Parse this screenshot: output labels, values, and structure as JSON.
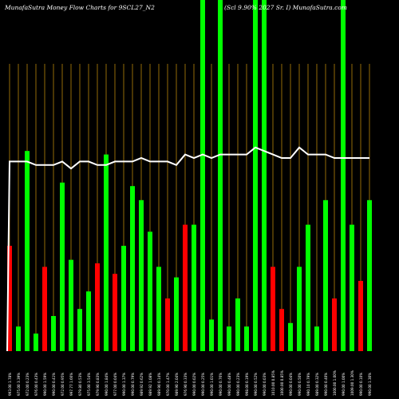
{
  "header": {
    "left_title": "MunafaSutra  Money Flow  Charts for 9SCL27_N2",
    "right_title": "(Scl 9.90% 2027 Sr. I) MunafaSutra.com"
  },
  "chart_data": {
    "type": "bar",
    "title": "MunafaSutra  Money Flow  Charts for 9SCL27_N2",
    "subtitle": "(Scl 9.90% 2027 Sr. I) MunafaSutra.com",
    "colors": {
      "up": "#00ff00",
      "down": "#ff0000",
      "line": "#ffffff",
      "grid": "#b8860b",
      "background": "#000000"
    },
    "grid": true,
    "categories": [
      "1",
      "2",
      "3",
      "4",
      "5",
      "6",
      "7",
      "8",
      "9",
      "10",
      "11",
      "12",
      "13",
      "14",
      "15",
      "16",
      "17",
      "18",
      "19",
      "20",
      "21",
      "22",
      "23",
      "24",
      "25",
      "26",
      "27",
      "28",
      "29",
      "30",
      "31",
      "32",
      "33",
      "34",
      "35",
      "36",
      "37",
      "38",
      "39",
      "40",
      "41",
      "42"
    ],
    "tick_labels": [
      "993.00 1.78%",
      "975.00 3.39%",
      "972.00 0.23%",
      "976.00 0.43%",
      "990.00 1.59%",
      "990.00 0.41%",
      "972.00 0.95%",
      "997.77 1.66%",
      "979.80 0.53%",
      "975.00 3.54%",
      "979.90 0.83%",
      "990.00 1.84%",
      "977.00 0.04%",
      "990.00 1.37%",
      "990.00 0.79%",
      "989.92 0.62%",
      "989.92 1.08%",
      "989.90 0.14%",
      "970.00 1.47%",
      "989.90 2.04%",
      "976.90 0.33%",
      "990.00 0.02%",
      "990.00 0.25%",
      "990.00 1.01%",
      "990.00 0.76%",
      "990.00 0.48%",
      "990.00 0.23%",
      "998.00 0.19%",
      "990.00 0.52%",
      "990.00 0.03%",
      "1010.00 0.85%",
      "1000.00 0.85%",
      "990.00 0.04%",
      "990.00 0.50%",
      "990.10 0.79%",
      "989.00 0.32%",
      "990.00 0.40%",
      "1000.00 1.00%",
      "990.00 1.00%",
      "1009.00 1.30%",
      "990.00 0.10%",
      "990.00 1.30%"
    ],
    "values": [
      0.3,
      0.07,
      0.57,
      0.05,
      0.24,
      0.1,
      0.48,
      0.26,
      0.12,
      0.17,
      0.25,
      0.56,
      0.22,
      0.3,
      0.47,
      0.43,
      0.34,
      0.24,
      0.15,
      0.21,
      0.36,
      0.36,
      1.0,
      0.09,
      1.0,
      0.07,
      0.15,
      0.07,
      1.0,
      1.0,
      0.24,
      0.12,
      0.08,
      0.24,
      0.36,
      0.07,
      0.43,
      0.15,
      1.0,
      0.36,
      0.2,
      0.43
    ],
    "directions": [
      "down",
      "up",
      "up",
      "up",
      "down",
      "up",
      "up",
      "up",
      "up",
      "up",
      "down",
      "up",
      "down",
      "up",
      "up",
      "up",
      "up",
      "up",
      "down",
      "up",
      "down",
      "up",
      "up",
      "up",
      "up",
      "up",
      "up",
      "up",
      "up",
      "up",
      "down",
      "down",
      "up",
      "up",
      "up",
      "up",
      "up",
      "down",
      "up",
      "up",
      "down",
      "up"
    ],
    "line": [
      0.54,
      0.54,
      0.54,
      0.53,
      0.53,
      0.53,
      0.54,
      0.52,
      0.54,
      0.54,
      0.53,
      0.53,
      0.54,
      0.54,
      0.54,
      0.55,
      0.54,
      0.54,
      0.54,
      0.53,
      0.56,
      0.55,
      0.56,
      0.55,
      0.56,
      0.56,
      0.56,
      0.56,
      0.58,
      0.57,
      0.56,
      0.55,
      0.55,
      0.58,
      0.56,
      0.56,
      0.56,
      0.55,
      0.55,
      0.55,
      0.55,
      0.55
    ],
    "line_start": 0.0,
    "ylim": [
      0,
      1
    ]
  }
}
